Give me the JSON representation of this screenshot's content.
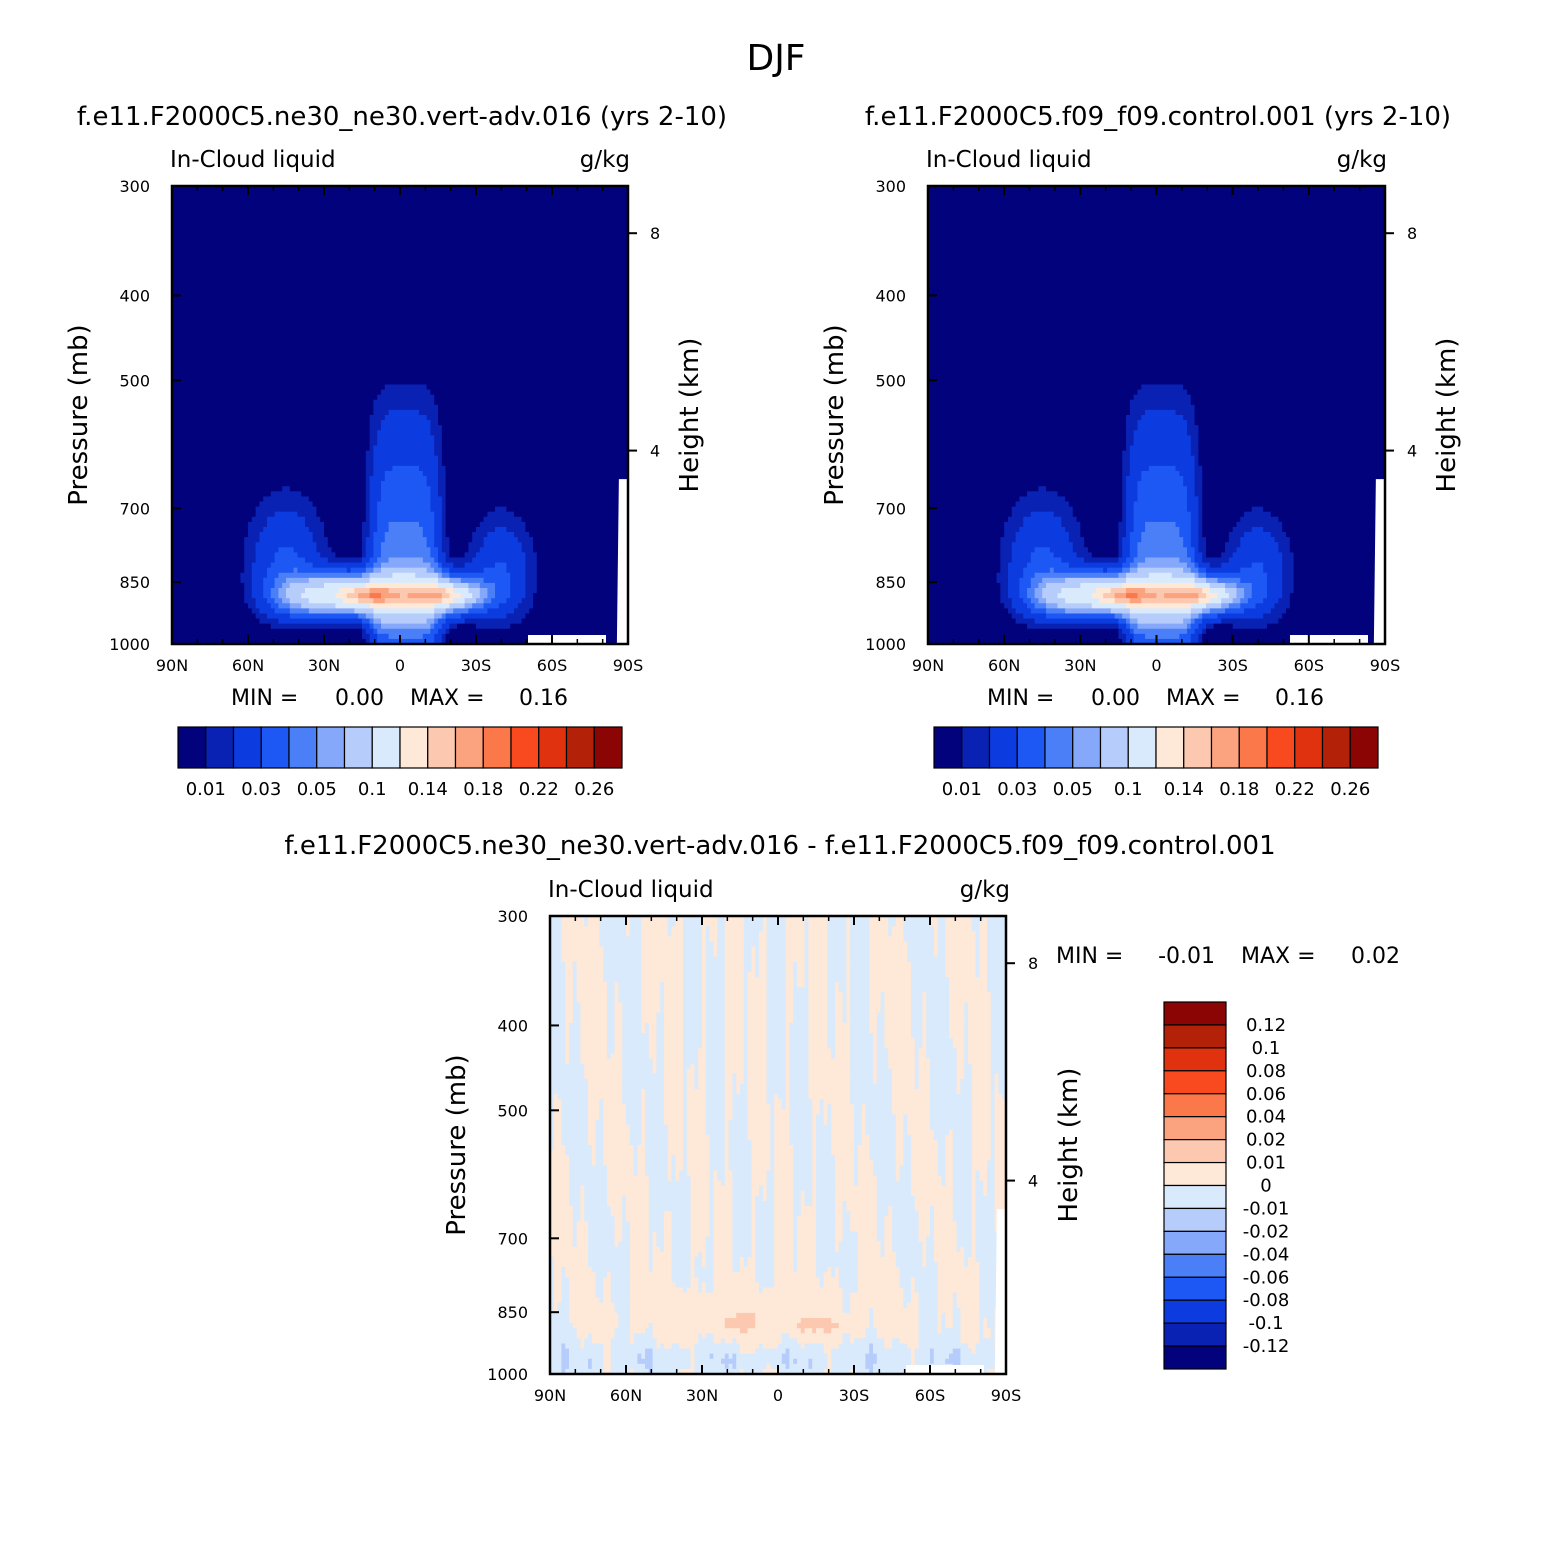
{
  "figure": {
    "title": "DJF"
  },
  "colors": {
    "abs_palette": [
      "#02027c",
      "#0a22b4",
      "#0c3ce0",
      "#1d58f5",
      "#4a7ff7",
      "#86a8fa",
      "#b6cdfb",
      "#d9eafc",
      "#fee8d8",
      "#fcc9b0",
      "#fba37e",
      "#fa784a",
      "#f94a1f",
      "#e13210",
      "#b32208",
      "#8c0505"
    ],
    "diff_palette": [
      "#02027c",
      "#0a22b4",
      "#0c3ce0",
      "#1d58f5",
      "#4a7ff7",
      "#86a8fa",
      "#b6cdfb",
      "#d9eafc",
      "#fee8d8",
      "#fcc9b0",
      "#fba37e",
      "#fa784a",
      "#f94a1f",
      "#e13210",
      "#b32208",
      "#8c0505"
    ]
  },
  "chart_data": [
    {
      "type": "heatmap",
      "title": "f.e11.F2000C5.ne30_ne30.vert-adv.016 (yrs 2-10)",
      "left_string": "In-Cloud liquid",
      "right_string": "g/kg",
      "ylabel": "Pressure (mb)",
      "ylabel_right": "Height (km)",
      "x_ticks": [
        "90N",
        "60N",
        "30N",
        "0",
        "30S",
        "60S",
        "90S"
      ],
      "y_ticks": [
        "300",
        "400",
        "500",
        "700",
        "850",
        "1000"
      ],
      "y_right_ticks": [
        "8",
        "4"
      ],
      "xlim": [
        90,
        -90
      ],
      "ylim": [
        1000,
        300
      ],
      "stats": {
        "min_label": "MIN =",
        "min_value": "0.00",
        "max_label": "MAX =",
        "max_value": "0.16"
      },
      "colorbar_labels": [
        "0.01",
        "0.03",
        "0.05",
        "0.1",
        "0.14",
        "0.18",
        "0.22",
        "0.26"
      ],
      "contour_levels": [
        0.005,
        0.01,
        0.02,
        0.03,
        0.04,
        0.05,
        0.07,
        0.1,
        0.12,
        0.14,
        0.16,
        0.18,
        0.2,
        0.22,
        0.24,
        0.26
      ]
    },
    {
      "type": "heatmap",
      "title": "f.e11.F2000C5.f09_f09.control.001 (yrs 2-10)",
      "left_string": "In-Cloud liquid",
      "right_string": "g/kg",
      "ylabel": "Pressure (mb)",
      "ylabel_right": "Height (km)",
      "x_ticks": [
        "90N",
        "60N",
        "30N",
        "0",
        "30S",
        "60S",
        "90S"
      ],
      "y_ticks": [
        "300",
        "400",
        "500",
        "700",
        "850",
        "1000"
      ],
      "y_right_ticks": [
        "8",
        "4"
      ],
      "xlim": [
        90,
        -90
      ],
      "ylim": [
        1000,
        300
      ],
      "stats": {
        "min_label": "MIN =",
        "min_value": "0.00",
        "max_label": "MAX =",
        "max_value": "0.16"
      },
      "colorbar_labels": [
        "0.01",
        "0.03",
        "0.05",
        "0.1",
        "0.14",
        "0.18",
        "0.22",
        "0.26"
      ],
      "contour_levels": [
        0.005,
        0.01,
        0.02,
        0.03,
        0.04,
        0.05,
        0.07,
        0.1,
        0.12,
        0.14,
        0.16,
        0.18,
        0.2,
        0.22,
        0.24,
        0.26
      ]
    },
    {
      "type": "heatmap",
      "title": "f.e11.F2000C5.ne30_ne30.vert-adv.016 - f.e11.F2000C5.f09_f09.control.001",
      "left_string": "In-Cloud liquid",
      "right_string": "g/kg",
      "ylabel": "Pressure (mb)",
      "ylabel_right": "Height (km)",
      "x_ticks": [
        "90N",
        "60N",
        "30N",
        "0",
        "30S",
        "60S",
        "90S"
      ],
      "y_ticks": [
        "300",
        "400",
        "500",
        "700",
        "850",
        "1000"
      ],
      "y_right_ticks": [
        "8",
        "4"
      ],
      "xlim": [
        90,
        -90
      ],
      "ylim": [
        1000,
        300
      ],
      "stats": {
        "min_label": "MIN =",
        "min_value": "-0.01",
        "max_label": "MAX =",
        "max_value": "0.02"
      },
      "colorbar_labels": [
        "0.12",
        "0.1",
        "0.08",
        "0.06",
        "0.04",
        "0.02",
        "0.01",
        "0",
        "-0.01",
        "-0.02",
        "-0.04",
        "-0.06",
        "-0.08",
        "-0.1",
        "-0.12"
      ]
    }
  ]
}
